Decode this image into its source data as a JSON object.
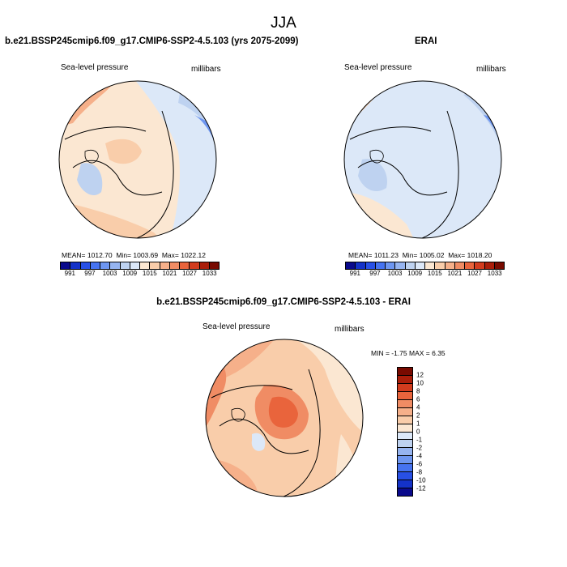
{
  "season": "JJA",
  "panels": {
    "model": {
      "title": "b.e21.BSSP245cmip6.f09_g17.CMIP6-SSP2-4.5.103 (yrs 2075-2099)",
      "variable": "Sea-level pressure",
      "units": "millibars",
      "mean_label": "MEAN= 1012.70",
      "min_label": "Min= 1003.69",
      "max_label": "Max= 1022.12"
    },
    "obs": {
      "title": "ERAI",
      "variable": "Sea-level pressure",
      "units": "millibars",
      "mean_label": "MEAN= 1011.23",
      "min_label": "Min= 1005.02",
      "max_label": "Max= 1018.20"
    },
    "diff": {
      "title": "b.e21.BSSP245cmip6.f09_g17.CMIP6-SSP2-4.5.103 - ERAI",
      "variable": "Sea-level pressure",
      "units": "millibars",
      "minmax_label": "MIN = -1.75 MAX = 6.35"
    }
  },
  "abs_colorbar": {
    "colors": [
      "#0a0a8c",
      "#1432c8",
      "#2850e6",
      "#4673f0",
      "#6e96f0",
      "#96b4f0",
      "#bed2f0",
      "#dce8f8",
      "#fbe7d2",
      "#f9cdaa",
      "#f6b08a",
      "#f08c64",
      "#e9643c",
      "#d23c1e",
      "#aa1e0a",
      "#780a00"
    ],
    "tick_labels": [
      "991",
      "997",
      "1003",
      "1009",
      "1015",
      "1021",
      "1027",
      "1033"
    ]
  },
  "diff_colorbar": {
    "colors": [
      "#780a00",
      "#aa1e0a",
      "#d23c1e",
      "#e9643c",
      "#f08c64",
      "#f6b08a",
      "#f9cdaa",
      "#fbe7d2",
      "#dce8f8",
      "#bed2f0",
      "#96b4f0",
      "#6e96f0",
      "#4673f0",
      "#2850e6",
      "#1432c8",
      "#0a0a8c"
    ],
    "tick_labels": [
      "12",
      "10",
      "8",
      "6",
      "4",
      "2",
      "1",
      "0",
      "-1",
      "-2",
      "-4",
      "-6",
      "-8",
      "-10",
      "-12"
    ]
  }
}
